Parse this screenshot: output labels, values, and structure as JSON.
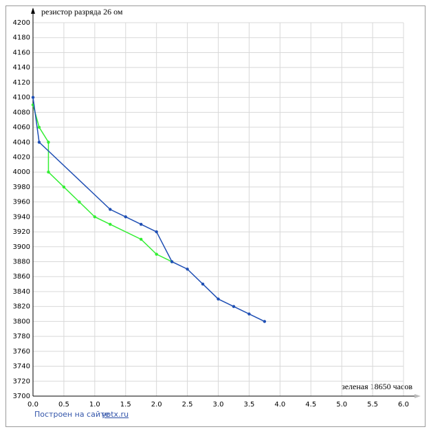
{
  "chart_data": {
    "type": "line",
    "y_label": "резистор разряда 26 ом",
    "x_label": "зеленая 18650 часов",
    "footer_text": "Построен на сайте",
    "footer_link": "yotx.ru",
    "xlim": [
      0,
      6
    ],
    "xticks": [
      {
        "value": 0,
        "label": "0.0"
      },
      0.5,
      {
        "value": 1,
        "label": "1.0"
      },
      1.5,
      {
        "value": 2,
        "label": "2.0"
      },
      2.5,
      {
        "value": 3,
        "label": "3.0"
      },
      3.5,
      {
        "value": 4,
        "label": "4.0"
      },
      4.5,
      {
        "value": 5,
        "label": "5.0"
      },
      5.5,
      {
        "value": 6,
        "label": "6.0"
      }
    ],
    "ylim": [
      3700,
      4200
    ],
    "yticks": [
      3700,
      3720,
      3740,
      3760,
      3780,
      3800,
      3820,
      3840,
      3860,
      3880,
      3900,
      3920,
      3940,
      3960,
      3980,
      4000,
      4020,
      4040,
      4060,
      4080,
      4100,
      4120,
      4140,
      4160,
      4180,
      4200
    ],
    "grid": true,
    "series": [
      {
        "color": "#33ee33",
        "x": [
          0,
          0.1,
          0.25,
          0.25,
          0.5,
          0.75,
          1.0,
          1.25,
          1.75,
          2.0,
          2.25
        ],
        "values": [
          4090,
          4060,
          4040,
          4000,
          3980,
          3960,
          3940,
          3930,
          3910,
          3890,
          3880
        ]
      },
      {
        "color": "#1f4fb4",
        "x": [
          0,
          0.1,
          1.25,
          1.5,
          1.75,
          2.0,
          2.25,
          2.5,
          2.75,
          3.0,
          3.25,
          3.5,
          3.75
        ],
        "values": [
          4100,
          4040,
          3950,
          3940,
          3930,
          3920,
          3880,
          3870,
          3850,
          3830,
          3820,
          3810,
          3800
        ]
      }
    ]
  }
}
